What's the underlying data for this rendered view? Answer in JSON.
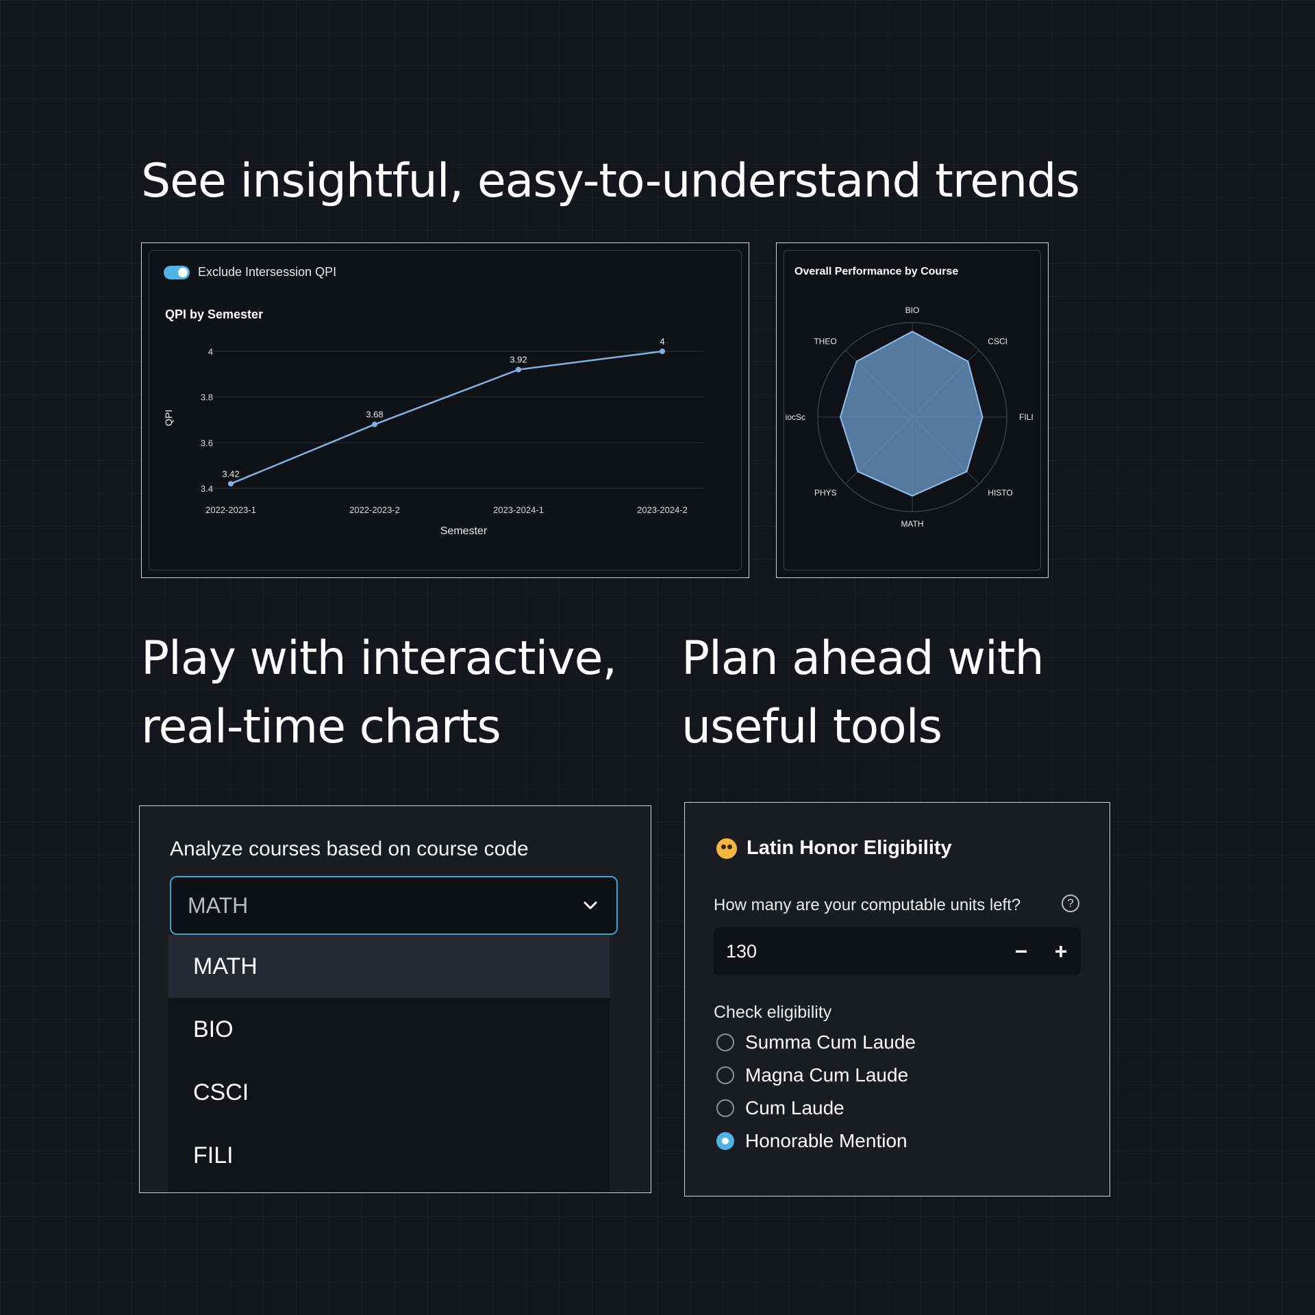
{
  "headlines": {
    "trends": "See insightful, easy-to-understand trends",
    "charts_line1": "Play with interactive,",
    "charts_line2": "real-time charts",
    "tools_line1": "Plan ahead with",
    "tools_line2": "useful tools"
  },
  "qpi_panel": {
    "toggle_label": "Exclude Intersession QPI",
    "toggle_on": true,
    "accent_color": "#4fb3e6"
  },
  "radar_panel": {},
  "course_select": {
    "label": "Analyze courses based on course code",
    "value": "MATH",
    "options": [
      "MATH",
      "BIO",
      "CSCI",
      "FILI"
    ]
  },
  "latin_honor": {
    "title": "Latin Honor Eligibility",
    "units_question": "How many are your computable units left?",
    "help_glyph": "?",
    "units_value": "130",
    "decrement": "−",
    "increment": "+",
    "check_label": "Check eligibility",
    "options": [
      "Summa Cum Laude",
      "Magna Cum Laude",
      "Cum Laude",
      "Honorable Mention"
    ],
    "selected_index": 3
  },
  "chart_data": [
    {
      "type": "line",
      "title": "QPI by Semester",
      "xlabel": "Semester",
      "ylabel": "QPI",
      "categories": [
        "2022-2023-1",
        "2022-2023-2",
        "2023-2024-1",
        "2023-2024-2"
      ],
      "values": [
        3.42,
        3.68,
        3.92,
        4
      ],
      "data_labels": [
        "3.42",
        "3.68",
        "3.92",
        "4"
      ],
      "yticks": [
        "4",
        "3.8",
        "3.6",
        "3.4"
      ],
      "ytick_values": [
        4,
        3.8,
        3.6,
        3.4
      ],
      "ylim": [
        3.4,
        4.0
      ],
      "grid": true,
      "color": "#7fb3e6"
    },
    {
      "type": "radar",
      "title": "Overall Performance by Course",
      "categories": [
        "BIO",
        "CSCI",
        "FILI",
        "HISTO",
        "MATH",
        "PHYS",
        "iocSc",
        "THEO"
      ],
      "values": [
        1,
        0.92,
        0.82,
        0.9,
        0.92,
        0.9,
        0.84,
        0.92
      ],
      "rlim": [
        0,
        1
      ],
      "color": "#6f9ccc"
    }
  ]
}
